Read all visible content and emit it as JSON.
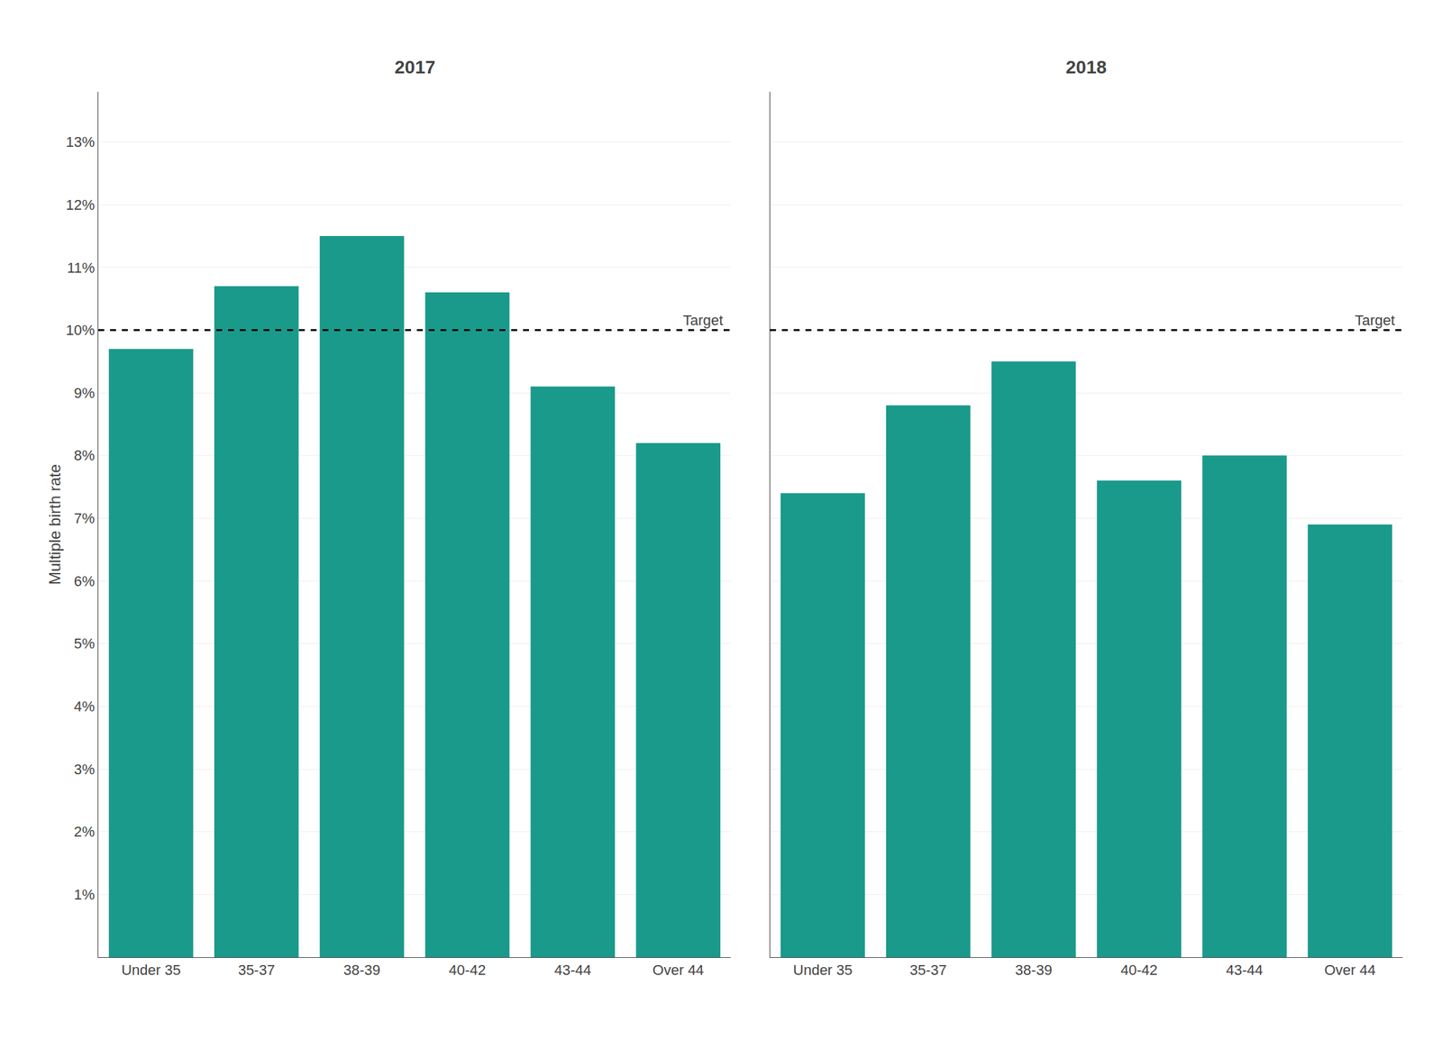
{
  "chart_data": [
    {
      "type": "bar",
      "title": "2017",
      "categories": [
        "Under 35",
        "35-37",
        "38-39",
        "40-42",
        "43-44",
        "Over 44"
      ],
      "values": [
        0.097,
        0.107,
        0.115,
        0.106,
        0.091,
        0.082
      ],
      "color": "#1a9a8a",
      "ylabel": "Multiple birth rate",
      "ylim": [
        0,
        0.138
      ],
      "yticks": [
        {
          "value": 0.01,
          "label": "1%"
        },
        {
          "value": 0.02,
          "label": "2%"
        },
        {
          "value": 0.03,
          "label": "3%"
        },
        {
          "value": 0.04,
          "label": "4%"
        },
        {
          "value": 0.05,
          "label": "5%"
        },
        {
          "value": 0.06,
          "label": "6%"
        },
        {
          "value": 0.07,
          "label": "7%"
        },
        {
          "value": 0.08,
          "label": "8%"
        },
        {
          "value": 0.09,
          "label": "9%"
        },
        {
          "value": 0.1,
          "label": "10%"
        },
        {
          "value": 0.11,
          "label": "11%"
        },
        {
          "value": 0.12,
          "label": "12%"
        },
        {
          "value": 0.13,
          "label": "13%"
        }
      ],
      "grid": true,
      "annotations": [
        {
          "text": "Target",
          "y": 0.1,
          "line_style": "dashed"
        }
      ]
    },
    {
      "type": "bar",
      "title": "2018",
      "categories": [
        "Under 35",
        "35-37",
        "38-39",
        "40-42",
        "43-44",
        "Over 44"
      ],
      "values": [
        0.074,
        0.088,
        0.095,
        0.076,
        0.08,
        0.069
      ],
      "color": "#1a9a8a",
      "ylim": [
        0,
        0.138
      ],
      "yticks": [
        0.01,
        0.02,
        0.03,
        0.04,
        0.05,
        0.06,
        0.07,
        0.08,
        0.09,
        0.1,
        0.11,
        0.12,
        0.13
      ],
      "grid": true,
      "tick_labels": "x",
      "annotations": [
        {
          "text": "Target",
          "y": 0.1,
          "line_style": "dashed"
        }
      ]
    }
  ]
}
